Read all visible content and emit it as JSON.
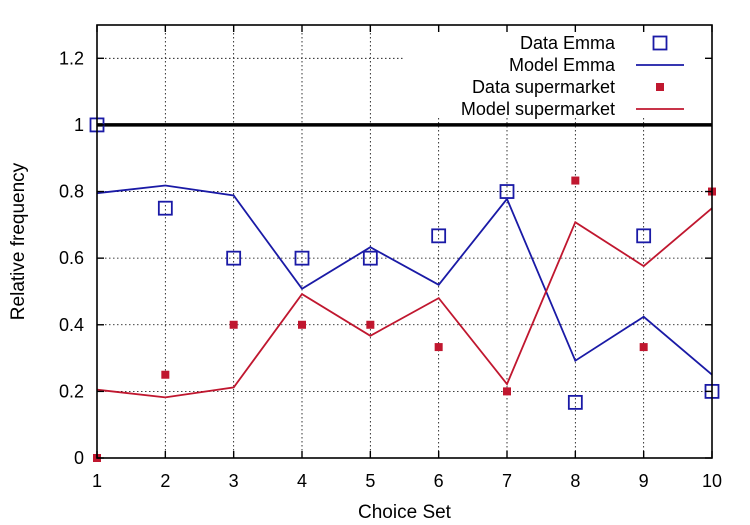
{
  "chart_data": {
    "type": "line",
    "title": "",
    "xlabel": "Choice Set",
    "ylabel": "Relative frequency",
    "xlim": [
      1,
      10
    ],
    "ylim": [
      0,
      1.3
    ],
    "x_ticks": [
      1,
      2,
      3,
      4,
      5,
      6,
      7,
      8,
      9,
      10
    ],
    "y_ticks": [
      0,
      0.2,
      0.4,
      0.6,
      0.8,
      1,
      1.2
    ],
    "y_tick_labels": [
      "0",
      "0.2",
      "0.4",
      "0.6",
      "0.8",
      "1",
      "1.2"
    ],
    "grid": true,
    "legend_position": "top-right",
    "reference_line": {
      "y": 1,
      "color": "#000000"
    },
    "x": [
      1,
      2,
      3,
      4,
      5,
      6,
      7,
      8,
      9,
      10
    ],
    "series": [
      {
        "name": "Data  Emma",
        "kind": "points",
        "marker": "open-square",
        "color": "#1a1aa6",
        "values": [
          1.0,
          0.75,
          0.6,
          0.6,
          0.6,
          0.667,
          0.8,
          0.167,
          0.667,
          0.2
        ]
      },
      {
        "name": "Model Emma",
        "kind": "line",
        "color": "#1a1aa6",
        "values": [
          0.795,
          0.818,
          0.788,
          0.508,
          0.633,
          0.52,
          0.778,
          0.292,
          0.424,
          0.25
        ]
      },
      {
        "name": "Data  supermarket",
        "kind": "points",
        "marker": "filled-square",
        "color": "#c0172f",
        "values": [
          0.0,
          0.25,
          0.4,
          0.4,
          0.4,
          0.333,
          0.2,
          0.833,
          0.333,
          0.8
        ]
      },
      {
        "name": "Model supermarket",
        "kind": "line",
        "color": "#c0172f",
        "values": [
          0.205,
          0.182,
          0.212,
          0.492,
          0.367,
          0.48,
          0.222,
          0.708,
          0.576,
          0.75
        ]
      }
    ]
  }
}
